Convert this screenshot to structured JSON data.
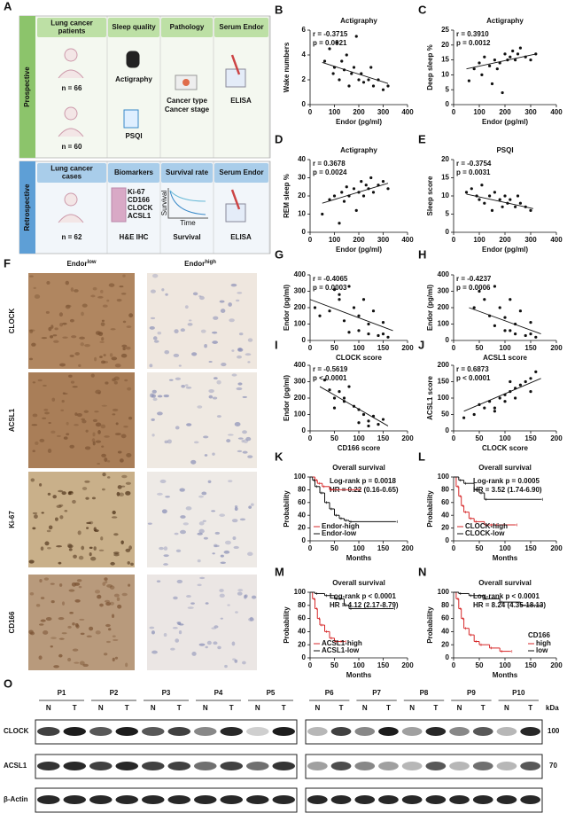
{
  "panel_a": {
    "label": "A",
    "prospective": {
      "name": "Prospective",
      "headers": [
        "Lung cancer patients",
        "Sleep quality",
        "Pathology",
        "Serum Endor"
      ],
      "cohort_n": [
        "n = 66",
        "n = 60"
      ],
      "methods": [
        "Actigraphy",
        "PSQI"
      ],
      "pathology": [
        "Cancer type",
        "Cancer stage"
      ],
      "assay": "ELISA"
    },
    "retrospective": {
      "name": "Retrospective",
      "headers": [
        "Lung cancer cases",
        "Biomarkers",
        "Survival rate",
        "Serum Endor"
      ],
      "cohort_n": "n = 62",
      "biomarkers": [
        "Ki-67",
        "CD166",
        "CLOCK",
        "ACSL1"
      ],
      "staining": "H&E IHC",
      "survival_axes": [
        "Survival",
        "Time"
      ],
      "survival_label": "Survival",
      "assay": "ELISA"
    }
  },
  "chart_data": [
    {
      "type": "scatter",
      "panel": "B",
      "title": "Actigraphy",
      "x_label": "Endor (pg/ml)",
      "y_label": "Wake numbers",
      "annotations": [
        "r = -0.3715",
        "p = 0.0021"
      ],
      "xlim": [
        0,
        400
      ],
      "xticks": [
        0,
        100,
        200,
        300,
        400
      ],
      "ylim": [
        0,
        6
      ],
      "yticks": [
        0,
        2,
        4,
        6
      ],
      "color": "#111111",
      "x": [
        60,
        80,
        95,
        100,
        110,
        120,
        130,
        140,
        150,
        160,
        170,
        180,
        190,
        200,
        210,
        220,
        240,
        250,
        260,
        280,
        300,
        320
      ],
      "values": [
        3.5,
        4.5,
        2.5,
        3,
        5,
        2,
        3.5,
        2.8,
        4,
        1.5,
        2.5,
        3,
        5.5,
        2,
        2.5,
        1.8,
        2,
        3,
        1.5,
        2,
        1.2,
        1.5
      ],
      "fit_x": [
        50,
        320
      ],
      "fit_y": [
        3.4,
        1.7
      ]
    },
    {
      "type": "scatter",
      "panel": "C",
      "title": "Actigraphy",
      "x_label": "Endor (pg/ml)",
      "y_label": "Deep sleep %",
      "annotations": [
        "r = 0.3910",
        "p = 0.0012"
      ],
      "xlim": [
        0,
        400
      ],
      "xticks": [
        0,
        100,
        200,
        300,
        400
      ],
      "ylim": [
        0,
        25
      ],
      "yticks": [
        0,
        5,
        10,
        15,
        20,
        25
      ],
      "color": "#111111",
      "x": [
        60,
        80,
        100,
        110,
        120,
        140,
        150,
        160,
        170,
        180,
        190,
        200,
        210,
        220,
        230,
        240,
        250,
        260,
        280,
        300,
        320
      ],
      "values": [
        8,
        12,
        14,
        10,
        16,
        13,
        7,
        15,
        12,
        14,
        4,
        17,
        15,
        16,
        18,
        15,
        17,
        19,
        16,
        15,
        17
      ],
      "fit_x": [
        50,
        320
      ],
      "fit_y": [
        12,
        17
      ]
    },
    {
      "type": "scatter",
      "panel": "D",
      "title": "Actigraphy",
      "x_label": "Endor (pg/ml)",
      "y_label": "REM sleep %",
      "annotations": [
        "r = 0.3678",
        "p = 0.0024"
      ],
      "xlim": [
        0,
        400
      ],
      "xticks": [
        0,
        100,
        200,
        300,
        400
      ],
      "ylim": [
        0,
        40
      ],
      "yticks": [
        0,
        10,
        20,
        30,
        40
      ],
      "color": "#111111",
      "x": [
        50,
        80,
        100,
        120,
        130,
        140,
        150,
        160,
        180,
        190,
        200,
        210,
        220,
        230,
        240,
        250,
        260,
        280,
        300,
        320
      ],
      "values": [
        10,
        18,
        20,
        5,
        22,
        17,
        25,
        20,
        24,
        12,
        22,
        28,
        20,
        26,
        24,
        30,
        22,
        26,
        28,
        24
      ],
      "fit_x": [
        50,
        320
      ],
      "fit_y": [
        16,
        27
      ]
    },
    {
      "type": "scatter",
      "panel": "E",
      "title": "PSQI",
      "x_label": "Endor (pg/ml)",
      "y_label": "Sleep score",
      "annotations": [
        "r = -0.3754",
        "p = 0.0031"
      ],
      "xlim": [
        0,
        400
      ],
      "xticks": [
        0,
        100,
        200,
        300,
        400
      ],
      "ylim": [
        0,
        20
      ],
      "yticks": [
        0,
        5,
        10,
        15,
        20
      ],
      "color": "#111111",
      "x": [
        50,
        70,
        90,
        100,
        110,
        120,
        140,
        150,
        160,
        180,
        190,
        200,
        210,
        220,
        240,
        250,
        260,
        280,
        300
      ],
      "values": [
        11,
        12,
        10,
        9,
        13,
        8,
        10,
        6,
        11,
        9,
        7,
        10,
        8,
        9,
        7,
        10,
        8,
        7,
        6
      ],
      "fit_x": [
        50,
        310
      ],
      "fit_y": [
        10.5,
        6.5
      ]
    },
    {
      "type": "scatter",
      "panel": "G",
      "x_label": "CLOCK score",
      "y_label": "Endor (pg/ml)",
      "annotations": [
        "r = -0.4065",
        "p = 0.0003"
      ],
      "xlim": [
        0,
        200
      ],
      "xticks": [
        0,
        50,
        100,
        150,
        200
      ],
      "ylim": [
        0,
        400
      ],
      "yticks": [
        0,
        100,
        200,
        300,
        400
      ],
      "color": "#111111",
      "x": [
        10,
        20,
        40,
        50,
        60,
        70,
        80,
        90,
        100,
        100,
        110,
        120,
        120,
        130,
        140,
        150,
        150,
        160,
        60,
        80
      ],
      "values": [
        200,
        150,
        180,
        310,
        250,
        120,
        330,
        200,
        150,
        60,
        250,
        100,
        40,
        180,
        30,
        110,
        40,
        20,
        280,
        50
      ],
      "fit_x": [
        0,
        170
      ],
      "fit_y": [
        250,
        60
      ]
    },
    {
      "type": "scatter",
      "panel": "H",
      "x_label": "ACSL1 score",
      "y_label": "Endor (pg/ml)",
      "annotations": [
        "r = -0.4237",
        "p = 0.0006"
      ],
      "xlim": [
        0,
        200
      ],
      "xticks": [
        0,
        50,
        100,
        150,
        200
      ],
      "ylim": [
        0,
        400
      ],
      "yticks": [
        0,
        100,
        200,
        300,
        400
      ],
      "color": "#111111",
      "x": [
        40,
        50,
        60,
        70,
        80,
        90,
        100,
        100,
        110,
        120,
        120,
        130,
        140,
        150,
        150,
        160,
        80,
        110
      ],
      "values": [
        200,
        300,
        250,
        150,
        330,
        200,
        140,
        60,
        250,
        100,
        40,
        180,
        30,
        110,
        40,
        20,
        90,
        60
      ],
      "fit_x": [
        30,
        170
      ],
      "fit_y": [
        200,
        40
      ]
    },
    {
      "type": "scatter",
      "panel": "I",
      "x_label": "CD166 score",
      "y_label": "Endor (pg/ml)",
      "annotations": [
        "r = -0.5619",
        "p < 0.0001"
      ],
      "xlim": [
        0,
        200
      ],
      "xticks": [
        0,
        50,
        100,
        150,
        200
      ],
      "ylim": [
        0,
        400
      ],
      "yticks": [
        0,
        100,
        200,
        300,
        400
      ],
      "color": "#111111",
      "x": [
        30,
        40,
        50,
        60,
        70,
        80,
        90,
        100,
        110,
        120,
        130,
        140,
        150,
        50,
        70,
        100,
        120
      ],
      "values": [
        310,
        250,
        200,
        240,
        180,
        270,
        150,
        130,
        100,
        60,
        90,
        40,
        70,
        140,
        200,
        50,
        30
      ],
      "fit_x": [
        20,
        160
      ],
      "fit_y": [
        270,
        30
      ]
    },
    {
      "type": "scatter",
      "panel": "J",
      "x_label": "CLOCK score",
      "y_label": "ACSL1 score",
      "annotations": [
        "r = 0.6873",
        "p < 0.0001"
      ],
      "xlim": [
        0,
        200
      ],
      "xticks": [
        0,
        50,
        100,
        150,
        200
      ],
      "ylim": [
        0,
        200
      ],
      "yticks": [
        0,
        50,
        100,
        150,
        200
      ],
      "color": "#111111",
      "x": [
        20,
        40,
        50,
        60,
        70,
        80,
        90,
        100,
        100,
        110,
        120,
        120,
        130,
        140,
        150,
        150,
        160,
        80,
        110
      ],
      "values": [
        40,
        50,
        80,
        70,
        90,
        60,
        100,
        110,
        90,
        120,
        100,
        130,
        140,
        150,
        120,
        160,
        180,
        70,
        150
      ],
      "fit_x": [
        20,
        170
      ],
      "fit_y": [
        60,
        160
      ]
    },
    {
      "type": "survival",
      "panel": "K",
      "title": "Overall survival",
      "x_label": "Months",
      "y_label": "Probability",
      "annotations": [
        "Log-rank p = 0.0018",
        "HR = 0.22 (0.16-0.65)"
      ],
      "xlim": [
        0,
        200
      ],
      "xticks": [
        0,
        50,
        100,
        150,
        200
      ],
      "ylim": [
        0,
        100
      ],
      "yticks": [
        0,
        20,
        40,
        60,
        80,
        100
      ],
      "legend": "lower-left",
      "series": [
        {
          "name": "Endor-high",
          "color": "#d62728",
          "x": [
            0,
            10,
            15,
            25,
            40,
            100
          ],
          "values": [
            100,
            95,
            90,
            85,
            80,
            80
          ]
        },
        {
          "name": "Endor-low",
          "color": "#111111",
          "x": [
            0,
            5,
            10,
            20,
            30,
            40,
            50,
            60,
            70,
            80,
            175
          ],
          "values": [
            100,
            95,
            85,
            75,
            60,
            50,
            40,
            35,
            32,
            30,
            30
          ]
        }
      ]
    },
    {
      "type": "survival",
      "panel": "L",
      "title": "Overall survival",
      "x_label": "Months",
      "y_label": "Probability",
      "annotations": [
        "Log-rank p = 0.0005",
        "HR = 3.52 (1.74-6.90)"
      ],
      "xlim": [
        0,
        200
      ],
      "xticks": [
        0,
        50,
        100,
        150,
        200
      ],
      "ylim": [
        0,
        100
      ],
      "yticks": [
        0,
        20,
        40,
        60,
        80,
        100
      ],
      "legend": "lower-left",
      "series": [
        {
          "name": "CLOCK-high",
          "color": "#d62728",
          "x": [
            0,
            5,
            10,
            15,
            20,
            30,
            40,
            60,
            70,
            80,
            120
          ],
          "values": [
            100,
            85,
            70,
            55,
            45,
            35,
            30,
            25,
            25,
            25,
            25
          ]
        },
        {
          "name": "CLOCK-low",
          "color": "#111111",
          "x": [
            0,
            10,
            20,
            40,
            50,
            60,
            170
          ],
          "values": [
            100,
            95,
            90,
            80,
            75,
            65,
            65
          ]
        }
      ]
    },
    {
      "type": "survival",
      "panel": "M",
      "title": "Overall survival",
      "x_label": "Months",
      "y_label": "Probability",
      "annotations": [
        "Log-rank p < 0.0001",
        "HR = 4.12 (2.17-8.79)"
      ],
      "xlim": [
        0,
        200
      ],
      "xticks": [
        0,
        50,
        100,
        150,
        200
      ],
      "ylim": [
        0,
        100
      ],
      "yticks": [
        0,
        20,
        40,
        60,
        80,
        100
      ],
      "legend": "lower-left",
      "series": [
        {
          "name": "ACSL1-high",
          "color": "#d62728",
          "x": [
            0,
            5,
            10,
            15,
            20,
            30,
            40,
            50,
            60,
            70
          ],
          "values": [
            100,
            90,
            75,
            60,
            50,
            40,
            30,
            25,
            25,
            25
          ]
        },
        {
          "name": "ACSL1-low",
          "color": "#111111",
          "x": [
            0,
            10,
            30,
            50,
            70,
            80,
            170
          ],
          "values": [
            100,
            98,
            95,
            90,
            80,
            75,
            75
          ]
        }
      ]
    },
    {
      "type": "survival",
      "panel": "N",
      "title": "Overall survival",
      "x_label": "Months",
      "y_label": "Probability",
      "annotations": [
        "Log-rank p < 0.0001",
        "HR = 8.24 (4.35-18.13)"
      ],
      "xlim": [
        0,
        200
      ],
      "xticks": [
        0,
        50,
        100,
        150,
        200
      ],
      "ylim": [
        0,
        100
      ],
      "yticks": [
        0,
        20,
        40,
        60,
        80,
        100
      ],
      "legend": "lower-right",
      "legend_title": "CD166",
      "series": [
        {
          "name": "high",
          "color": "#d62728",
          "x": [
            0,
            5,
            10,
            15,
            20,
            30,
            40,
            50,
            70,
            90,
            110
          ],
          "values": [
            100,
            90,
            75,
            60,
            45,
            35,
            25,
            20,
            15,
            10,
            10
          ]
        },
        {
          "name": "low",
          "color": "#111111",
          "x": [
            0,
            10,
            30,
            60,
            90,
            130,
            170
          ],
          "values": [
            100,
            98,
            95,
            90,
            85,
            80,
            80
          ]
        }
      ]
    }
  ],
  "panel_f": {
    "label": "F",
    "column_base": "Endor",
    "column_sup": [
      "low",
      "high"
    ],
    "rows": [
      "CLOCK",
      "ACSL1",
      "Ki-67",
      "CD166"
    ]
  },
  "panel_o": {
    "label": "O",
    "groups": [
      [
        "P1",
        "P2",
        "P3",
        "P4",
        "P5"
      ],
      [
        "P6",
        "P7",
        "P8",
        "P9",
        "P10"
      ]
    ],
    "lane_labels": [
      "N",
      "T"
    ],
    "rows": [
      "CLOCK",
      "ACSL1",
      "β-Actin"
    ],
    "unit": "kDa",
    "markers": [
      100,
      70
    ]
  }
}
